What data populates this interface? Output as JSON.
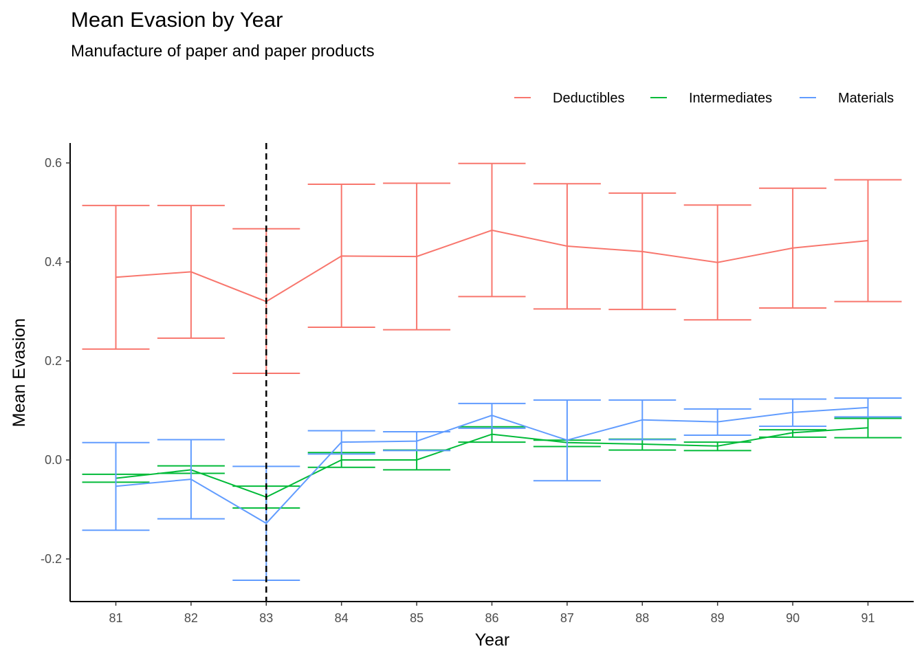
{
  "chart_data": {
    "type": "line",
    "title": "Mean Evasion by Year",
    "subtitle": "Manufacture of paper and paper products",
    "xlabel": "Year",
    "ylabel": "Mean Evasion",
    "x": [
      "81",
      "82",
      "83",
      "84",
      "85",
      "86",
      "87",
      "88",
      "89",
      "90",
      "91"
    ],
    "yticks": [
      "-0.2",
      "0.0",
      "0.2",
      "0.4",
      "0.6"
    ],
    "ylim": [
      -0.285,
      0.64
    ],
    "grid": false,
    "legend_position": "top-right",
    "vline_x": "83",
    "vline_style": "dashed",
    "series": [
      {
        "name": "Deductibles",
        "color": "#F8766D",
        "values": [
          0.369,
          0.38,
          0.32,
          0.412,
          0.411,
          0.464,
          0.432,
          0.421,
          0.399,
          0.428,
          0.443
        ],
        "lower": [
          0.224,
          0.246,
          0.175,
          0.268,
          0.263,
          0.33,
          0.305,
          0.304,
          0.283,
          0.307,
          0.32
        ],
        "upper": [
          0.514,
          0.514,
          0.467,
          0.557,
          0.559,
          0.599,
          0.558,
          0.539,
          0.515,
          0.549,
          0.566
        ]
      },
      {
        "name": "Intermediates",
        "color": "#00BA38",
        "values": [
          -0.037,
          -0.02,
          -0.075,
          0.0,
          0.0,
          0.052,
          0.035,
          0.032,
          0.028,
          0.055,
          0.065
        ],
        "lower": [
          -0.045,
          -0.027,
          -0.097,
          -0.015,
          -0.02,
          0.036,
          0.027,
          0.02,
          0.019,
          0.046,
          0.045
        ],
        "upper": [
          -0.029,
          -0.012,
          -0.053,
          0.015,
          0.02,
          0.067,
          0.04,
          0.042,
          0.036,
          0.061,
          0.084
        ]
      },
      {
        "name": "Materials",
        "color": "#619CFF",
        "values": [
          -0.053,
          -0.039,
          -0.128,
          0.036,
          0.038,
          0.09,
          0.04,
          0.081,
          0.077,
          0.096,
          0.106
        ],
        "lower": [
          -0.142,
          -0.119,
          -0.243,
          0.012,
          0.019,
          0.064,
          -0.042,
          0.041,
          0.05,
          0.068,
          0.087
        ],
        "upper": [
          0.035,
          0.041,
          -0.013,
          0.059,
          0.057,
          0.114,
          0.121,
          0.121,
          0.103,
          0.123,
          0.125
        ]
      }
    ]
  }
}
